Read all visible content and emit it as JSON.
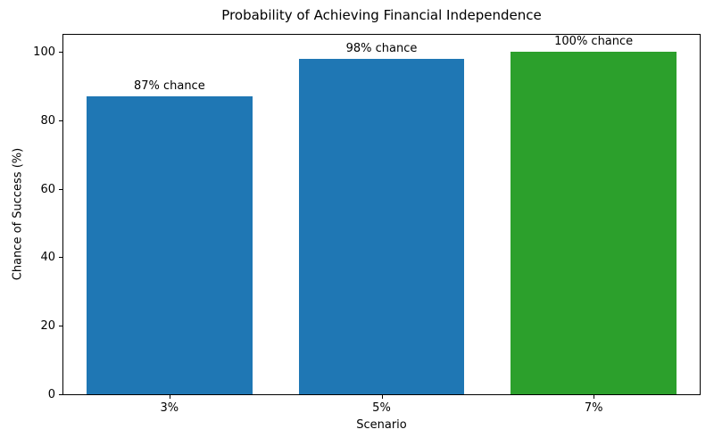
{
  "chart_data": {
    "type": "bar",
    "title": "Probability of Achieving Financial Independence",
    "xlabel": "Scenario",
    "ylabel": "Chance of Success (%)",
    "categories": [
      "3%",
      "5%",
      "7%"
    ],
    "values": [
      87,
      98,
      100
    ],
    "bar_labels": [
      "87% chance",
      "98% chance",
      "100% chance"
    ],
    "bar_colors": [
      "#1f77b4",
      "#1f77b4",
      "#2ca02c"
    ],
    "ylim": [
      0,
      105
    ],
    "yticks": [
      0,
      20,
      40,
      60,
      80,
      100
    ],
    "bar_width_fraction": 0.78,
    "grid": false,
    "legend": "none",
    "spine_color": "#000000",
    "background_color": "#ffffff"
  }
}
